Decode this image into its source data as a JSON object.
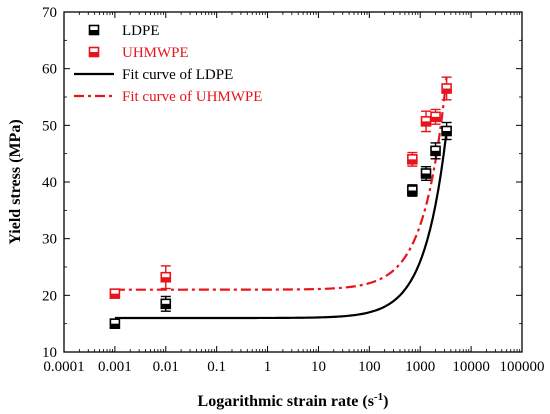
{
  "chart_data": {
    "type": "scatter",
    "xlabel": "Logarithmic strain rate (s",
    "xlabel_sup": "-1",
    "xlabel_end": ")",
    "ylabel": "Yield stress (MPa)",
    "x_scale": "log",
    "xlim": [
      0.0001,
      100000
    ],
    "ylim": [
      10,
      70
    ],
    "x_ticks": [
      0.0001,
      0.001,
      0.01,
      0.1,
      1,
      10,
      100,
      1000,
      10000,
      100000
    ],
    "x_tick_labels": [
      "0.0001",
      "0.001",
      "0.01",
      "0.1",
      "1",
      "10",
      "100",
      "1000",
      "10000",
      "100000"
    ],
    "y_ticks": [
      10,
      20,
      30,
      40,
      50,
      60,
      70
    ],
    "y_tick_labels": [
      "10",
      "20",
      "30",
      "40",
      "50",
      "60",
      "70"
    ],
    "grid": false,
    "legend_position": "top-left",
    "series": [
      {
        "name": "LDPE",
        "color": "#000000",
        "marker": "half-filled-square",
        "points": [
          {
            "x": 0.001,
            "y": 15.0,
            "err": 0.8
          },
          {
            "x": 0.01,
            "y": 18.5,
            "err": 1.3
          },
          {
            "x": 700,
            "y": 38.5,
            "err": 1.0
          },
          {
            "x": 1300,
            "y": 41.5,
            "err": 1.2
          },
          {
            "x": 2000,
            "y": 45.5,
            "err": 1.4
          },
          {
            "x": 3300,
            "y": 49.0,
            "err": 1.5
          }
        ]
      },
      {
        "name": "UHMWPE",
        "color": "#e8141b",
        "marker": "half-filled-square",
        "points": [
          {
            "x": 0.001,
            "y": 20.3,
            "err": 0.6
          },
          {
            "x": 0.01,
            "y": 23.2,
            "err": 2.0
          },
          {
            "x": 700,
            "y": 44.0,
            "err": 1.2
          },
          {
            "x": 1300,
            "y": 50.7,
            "err": 1.8
          },
          {
            "x": 2000,
            "y": 51.5,
            "err": 1.3
          },
          {
            "x": 3300,
            "y": 56.5,
            "err": 2.0
          }
        ]
      }
    ],
    "fit_curves": [
      {
        "name": "Fit curve of LDPE",
        "color": "#000000",
        "dash": "solid",
        "x_range": [
          0.001,
          3300
        ],
        "y0": 16.0,
        "k": 0.01
      }
    ],
    "fit_curves_extra": [
      {
        "name": "Fit curve of UHMWPE",
        "color": "#e8141b",
        "dash": "dashdot",
        "x_range": [
          0.001,
          3300
        ],
        "y0": 21.0,
        "k": 0.0114
      }
    ]
  }
}
